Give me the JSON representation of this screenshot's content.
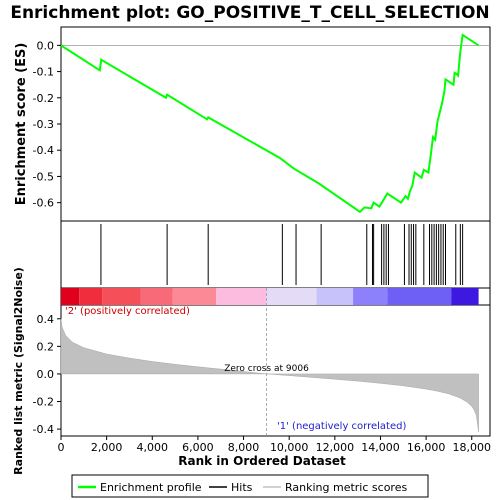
{
  "chart_data": [
    {
      "type": "line",
      "panel": "enrichment-profile",
      "title": "Enrichment plot: GO_POSITIVE_T_CELL_SELECTION",
      "ylabel": "Enrichment score (ES)",
      "ylim": [
        -0.67,
        0.07
      ],
      "xlim": [
        0,
        18800
      ],
      "y_ticks": [
        "0.0",
        "-0.1",
        "-0.2",
        "-0.3",
        "-0.4",
        "-0.5",
        "-0.6"
      ],
      "y_tick_values": [
        0.0,
        -0.1,
        -0.2,
        -0.3,
        -0.4,
        -0.5,
        -0.6
      ],
      "color": "#00ff00",
      "series": [
        {
          "name": "Enrichment profile",
          "x": [
            0,
            1700,
            1760,
            4600,
            4650,
            6400,
            6450,
            9600,
            10200,
            11300,
            13100,
            13300,
            13600,
            13700,
            13950,
            14100,
            14200,
            14300,
            14900,
            15100,
            15200,
            15300,
            15400,
            15500,
            15800,
            15900,
            16100,
            16200,
            16300,
            16400,
            16500,
            16600,
            16700,
            16800,
            16850,
            17200,
            17250,
            17350,
            17400,
            17500,
            17600,
            18300
          ],
          "y": [
            0.0,
            -0.095,
            -0.055,
            -0.2,
            -0.188,
            -0.282,
            -0.275,
            -0.43,
            -0.47,
            -0.527,
            -0.635,
            -0.618,
            -0.622,
            -0.6,
            -0.615,
            -0.595,
            -0.58,
            -0.565,
            -0.6,
            -0.575,
            -0.585,
            -0.555,
            -0.535,
            -0.485,
            -0.505,
            -0.475,
            -0.485,
            -0.42,
            -0.35,
            -0.36,
            -0.29,
            -0.255,
            -0.22,
            -0.175,
            -0.13,
            -0.15,
            -0.105,
            -0.11,
            -0.115,
            -0.025,
            0.04,
            0.0
          ]
        }
      ]
    },
    {
      "type": "scatter",
      "panel": "hits",
      "legend_name": "Hits",
      "x": [
        1750,
        4650,
        6450,
        9700,
        10300,
        11400,
        13400,
        13650,
        13700,
        14050,
        14150,
        14250,
        14350,
        15050,
        15250,
        15350,
        15450,
        15550,
        15900,
        16150,
        16250,
        16350,
        16450,
        16550,
        16650,
        16750,
        16850,
        17300,
        17500,
        17600
      ]
    },
    {
      "type": "area",
      "panel": "ranked-metric",
      "ylabel": "Ranked list metric (Signal2Noise)",
      "xlabel": "Rank in Ordered Dataset",
      "ylim": [
        -0.45,
        0.5
      ],
      "xlim": [
        0,
        18800
      ],
      "x_ticks": [
        "0",
        "2,000",
        "4,000",
        "6,000",
        "8,000",
        "10,000",
        "12,000",
        "14,000",
        "16,000",
        "18,000"
      ],
      "x_tick_values": [
        0,
        2000,
        4000,
        6000,
        8000,
        10000,
        12000,
        14000,
        16000,
        18000
      ],
      "y_ticks": [
        "0.4",
        "0.2",
        "0.0",
        "-0.2",
        "-0.4"
      ],
      "y_tick_values": [
        0.4,
        0.2,
        0.0,
        -0.2,
        -0.4
      ],
      "legend_name": "Ranking metric scores",
      "x": [
        0,
        50,
        200,
        500,
        1000,
        2000,
        3000,
        4000,
        5000,
        6000,
        7000,
        8000,
        9006,
        10000,
        11000,
        12000,
        13000,
        14000,
        15000,
        16000,
        16500,
        17000,
        17500,
        17800,
        18000,
        18100,
        18200,
        18300
      ],
      "values": [
        0.4,
        0.34,
        0.28,
        0.23,
        0.19,
        0.145,
        0.115,
        0.09,
        0.07,
        0.052,
        0.035,
        0.018,
        0.0,
        -0.012,
        -0.025,
        -0.038,
        -0.052,
        -0.068,
        -0.086,
        -0.11,
        -0.125,
        -0.145,
        -0.175,
        -0.205,
        -0.235,
        -0.26,
        -0.3,
        -0.42
      ],
      "zero_cross_label": "Zero cross at 9006",
      "zero_cross_x": 9006,
      "pos_label": "'2' (positively correlated)",
      "neg_label": "'1' (negatively correlated)",
      "heat_stops": [
        {
          "x": 0,
          "color": "#e0001e"
        },
        {
          "x": 800,
          "color": "#f02d3c"
        },
        {
          "x": 1800,
          "color": "#f5505a"
        },
        {
          "x": 3500,
          "color": "#f86a78"
        },
        {
          "x": 4900,
          "color": "#fb8a96"
        },
        {
          "x": 6800,
          "color": "#fcbcdf"
        },
        {
          "x": 9000,
          "color": "#e4dcf6"
        },
        {
          "x": 11200,
          "color": "#c8c2fb"
        },
        {
          "x": 12800,
          "color": "#8c80fb"
        },
        {
          "x": 14300,
          "color": "#6e5ff5"
        },
        {
          "x": 17100,
          "color": "#3c18e0"
        },
        {
          "x": 18300,
          "color": "#ffffff"
        }
      ]
    }
  ],
  "legend": {
    "items": [
      {
        "label": "Enrichment profile",
        "color": "#00ff00"
      },
      {
        "label": "Hits",
        "color": "#000000"
      },
      {
        "label": "Ranking metric scores",
        "color": "#c0c0c0"
      }
    ]
  }
}
